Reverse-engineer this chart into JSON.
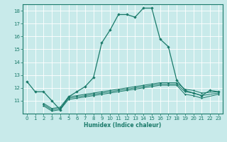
{
  "title": "",
  "xlabel": "Humidex (Indice chaleur)",
  "xlim": [
    -0.5,
    23.5
  ],
  "ylim": [
    10.0,
    18.5
  ],
  "yticks": [
    11,
    12,
    13,
    14,
    15,
    16,
    17,
    18
  ],
  "xticks": [
    0,
    1,
    2,
    3,
    4,
    5,
    6,
    7,
    8,
    9,
    10,
    11,
    12,
    13,
    14,
    15,
    16,
    17,
    18,
    19,
    20,
    21,
    22,
    23
  ],
  "bg_color": "#c8eaea",
  "line_color": "#1a7a6a",
  "grid_color": "#ffffff",
  "series": [
    {
      "x": [
        0,
        1,
        2,
        3,
        4,
        5,
        6,
        7,
        8,
        9,
        10,
        11,
        12,
        13,
        14,
        15,
        16,
        17,
        18,
        19,
        20,
        21,
        22,
        23
      ],
      "y": [
        12.5,
        11.7,
        11.7,
        11.0,
        10.3,
        11.3,
        11.7,
        12.1,
        12.8,
        15.5,
        16.5,
        17.7,
        17.7,
        17.5,
        18.2,
        18.2,
        15.8,
        15.2,
        12.6,
        11.8,
        11.6,
        11.4,
        11.8,
        11.7
      ]
    },
    {
      "x": [
        2,
        3,
        4,
        5,
        6,
        7,
        8,
        9,
        10,
        11,
        12,
        13,
        14,
        15,
        16,
        17,
        18,
        19,
        20,
        21,
        23
      ],
      "y": [
        10.8,
        10.4,
        10.5,
        11.3,
        11.4,
        11.5,
        11.6,
        11.7,
        11.8,
        11.9,
        12.0,
        12.1,
        12.2,
        12.3,
        12.4,
        12.4,
        12.4,
        11.9,
        11.8,
        11.6,
        11.7
      ]
    },
    {
      "x": [
        2,
        3,
        4,
        5,
        6,
        7,
        8,
        9,
        10,
        11,
        12,
        13,
        14,
        15,
        16,
        17,
        18,
        19,
        20,
        21,
        23
      ],
      "y": [
        10.7,
        10.3,
        10.4,
        11.2,
        11.3,
        11.4,
        11.5,
        11.6,
        11.7,
        11.8,
        11.9,
        12.0,
        12.1,
        12.2,
        12.3,
        12.3,
        12.3,
        11.7,
        11.6,
        11.4,
        11.6
      ]
    },
    {
      "x": [
        2,
        3,
        4,
        5,
        6,
        7,
        8,
        9,
        10,
        11,
        12,
        13,
        14,
        15,
        16,
        17,
        18,
        19,
        20,
        21,
        23
      ],
      "y": [
        10.6,
        10.2,
        10.3,
        11.1,
        11.2,
        11.3,
        11.4,
        11.5,
        11.6,
        11.7,
        11.8,
        11.9,
        12.0,
        12.1,
        12.2,
        12.2,
        12.2,
        11.5,
        11.4,
        11.2,
        11.5
      ]
    }
  ]
}
